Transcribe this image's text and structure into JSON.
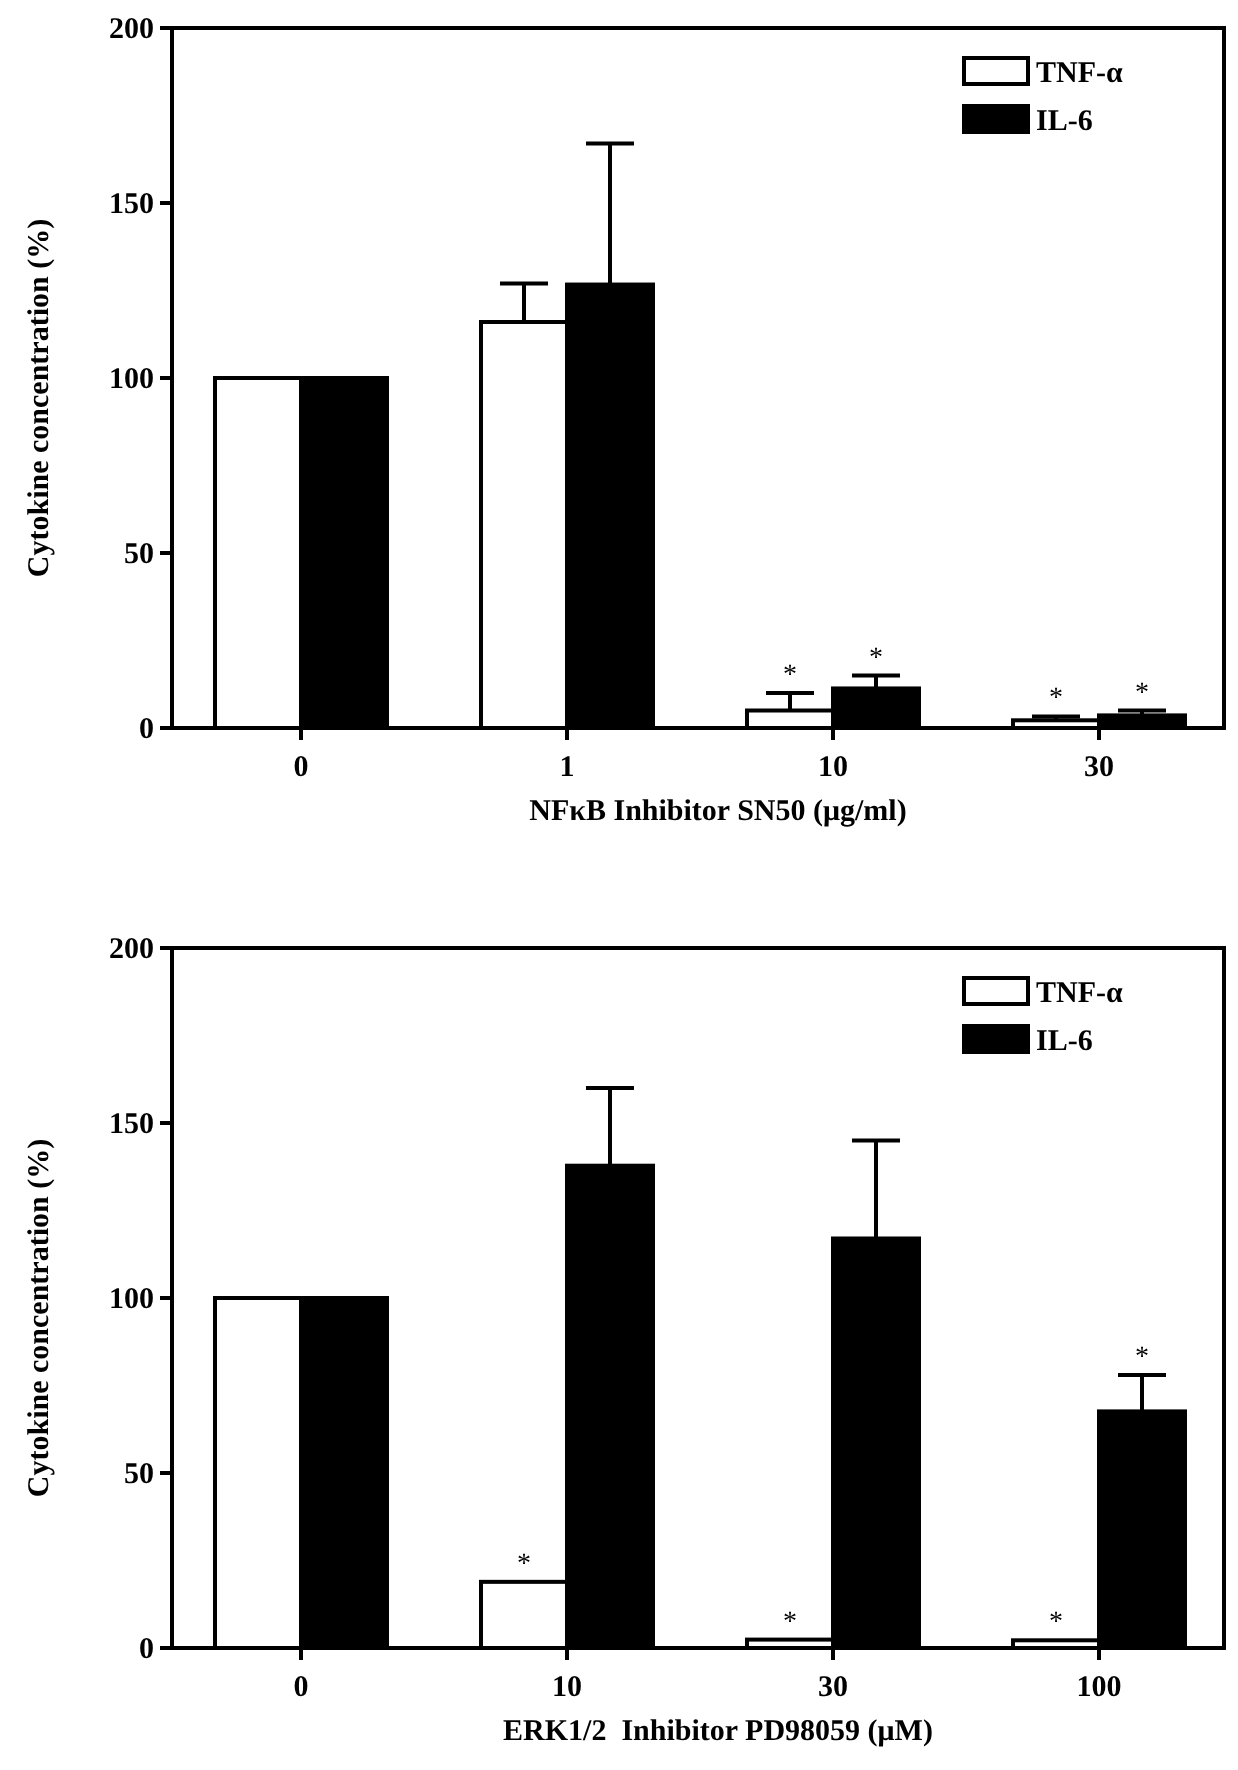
{
  "chart_data": [
    {
      "type": "bar",
      "xlabel": "NFκB Inhibitor SN50 (μg/ml)",
      "ylabel": "Cytokine concentration (%)",
      "categories": [
        "0",
        "1",
        "10",
        "30"
      ],
      "ylim": [
        0,
        200
      ],
      "yticks": [
        0,
        50,
        100,
        150,
        200
      ],
      "legend": "top right",
      "grid": false,
      "series": [
        {
          "name": "TNF-α",
          "color": "#ffffff",
          "values": [
            100,
            116,
            5,
            2.2
          ],
          "errors": [
            null,
            [
              116,
              127
            ],
            [
              5,
              10
            ],
            [
              2.2,
              3.3
            ]
          ],
          "value_labels": [
            null,
            null,
            "*",
            "*"
          ]
        },
        {
          "name": "IL-6",
          "color": "#000000",
          "values": [
            100,
            126.7,
            11.3,
            3.6
          ],
          "errors": [
            null,
            [
              126.7,
              167
            ],
            [
              11.3,
              15
            ],
            [
              3.6,
              5
            ]
          ],
          "value_labels": [
            null,
            null,
            "*",
            "*"
          ]
        }
      ]
    },
    {
      "type": "bar",
      "xlabel": "ERK1/2  Inhibitor PD98059 (μM)",
      "ylabel": "Cytokine concentration (%)",
      "categories": [
        "0",
        "10",
        "30",
        "100"
      ],
      "ylim": [
        0,
        200
      ],
      "yticks": [
        0,
        50,
        100,
        150,
        200
      ],
      "legend": "top right",
      "grid": false,
      "series": [
        {
          "name": "TNF-α",
          "color": "#ffffff",
          "values": [
            100,
            18.9,
            2.4,
            2.2
          ],
          "value_labels": [
            null,
            "*",
            "*",
            "*"
          ]
        },
        {
          "name": "IL-6",
          "color": "#000000",
          "values": [
            100,
            137.8,
            117,
            67.6
          ],
          "errors": [
            null,
            [
              137.8,
              160
            ],
            [
              117,
              145
            ],
            [
              67.6,
              78
            ]
          ],
          "value_labels": [
            null,
            null,
            null,
            "*"
          ]
        }
      ]
    }
  ]
}
